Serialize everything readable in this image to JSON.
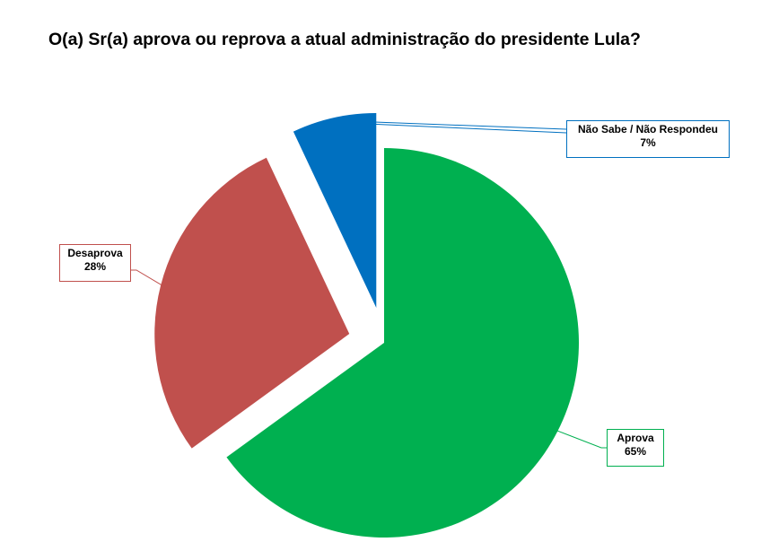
{
  "chart_data": {
    "type": "pie",
    "title": "O(a) Sr(a) aprova ou reprova a atual administração do presidente Lula?",
    "exploded": true,
    "slices": [
      {
        "label": "Aprova",
        "value": 65,
        "percent_label": "65%",
        "color": "#00b050"
      },
      {
        "label": "Desaprova",
        "value": 28,
        "percent_label": "28%",
        "color": "#c0504d"
      },
      {
        "label": "Não Sabe / Não Respondeu",
        "value": 7,
        "percent_label": "7%",
        "color": "#0070c0"
      }
    ]
  }
}
